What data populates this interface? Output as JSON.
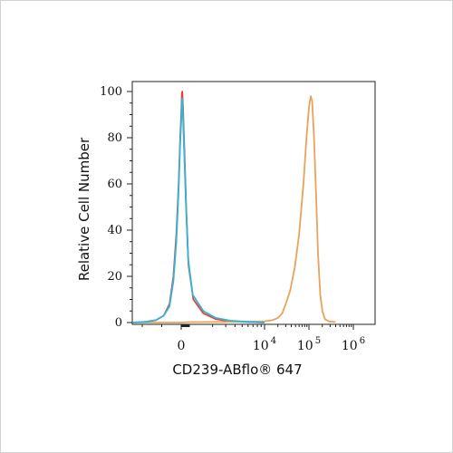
{
  "chart_data": {
    "type": "line",
    "title": "",
    "xlabel": "CD239-ABflo® 647",
    "ylabel": "Relative Cell Number",
    "x_scale": "biexponential",
    "x_ticks": [
      {
        "label": "0",
        "value": 0
      },
      {
        "label": "10",
        "sup": "4",
        "value": 10000
      },
      {
        "label": "10",
        "sup": "5",
        "value": 100000
      },
      {
        "label": "10",
        "sup": "6",
        "value": 1000000
      }
    ],
    "y_ticks": [
      "0",
      "20",
      "40",
      "60",
      "80",
      "100"
    ],
    "ylim": [
      0,
      100
    ],
    "grid": false,
    "series": [
      {
        "color": "#e8413c",
        "points": [
          [
            -2500,
            0
          ],
          [
            -1800,
            0.3
          ],
          [
            -1300,
            1
          ],
          [
            -900,
            3
          ],
          [
            -600,
            8
          ],
          [
            -400,
            20
          ],
          [
            -250,
            38
          ],
          [
            -130,
            60
          ],
          [
            -50,
            80
          ],
          [
            20,
            92
          ],
          [
            70,
            99
          ],
          [
            120,
            100
          ],
          [
            200,
            93
          ],
          [
            350,
            75
          ],
          [
            550,
            50
          ],
          [
            800,
            25
          ],
          [
            1100,
            10
          ],
          [
            1500,
            4
          ],
          [
            2200,
            1.5
          ],
          [
            3500,
            0.5
          ],
          [
            6000,
            0.2
          ],
          [
            10000,
            0
          ]
        ]
      },
      {
        "color": "#e9a25a",
        "points": [
          [
            -2500,
            0
          ],
          [
            0,
            0
          ],
          [
            1000,
            0.2
          ],
          [
            5000,
            0.3
          ],
          [
            10000,
            0.5
          ],
          [
            15000,
            1
          ],
          [
            20000,
            2
          ],
          [
            25000,
            4
          ],
          [
            30000,
            8
          ],
          [
            38000,
            14
          ],
          [
            48000,
            24
          ],
          [
            60000,
            38
          ],
          [
            75000,
            60
          ],
          [
            88000,
            80
          ],
          [
            100000,
            93
          ],
          [
            110000,
            98
          ],
          [
            118000,
            96
          ],
          [
            130000,
            80
          ],
          [
            145000,
            55
          ],
          [
            160000,
            30
          ],
          [
            180000,
            12
          ],
          [
            200000,
            5
          ],
          [
            230000,
            1.5
          ],
          [
            280000,
            0.5
          ],
          [
            400000,
            0.2
          ]
        ]
      },
      {
        "color": "#2fb5d6",
        "points": [
          [
            -2500,
            0
          ],
          [
            -1800,
            0.3
          ],
          [
            -1300,
            1
          ],
          [
            -900,
            3
          ],
          [
            -600,
            7
          ],
          [
            -400,
            18
          ],
          [
            -250,
            35
          ],
          [
            -140,
            56
          ],
          [
            -60,
            76
          ],
          [
            10,
            88
          ],
          [
            60,
            95
          ],
          [
            110,
            97
          ],
          [
            180,
            91
          ],
          [
            320,
            75
          ],
          [
            520,
            52
          ],
          [
            780,
            27
          ],
          [
            1080,
            12
          ],
          [
            1500,
            5
          ],
          [
            2200,
            2
          ],
          [
            3500,
            0.8
          ],
          [
            6000,
            0.3
          ],
          [
            10000,
            0
          ]
        ]
      }
    ]
  }
}
